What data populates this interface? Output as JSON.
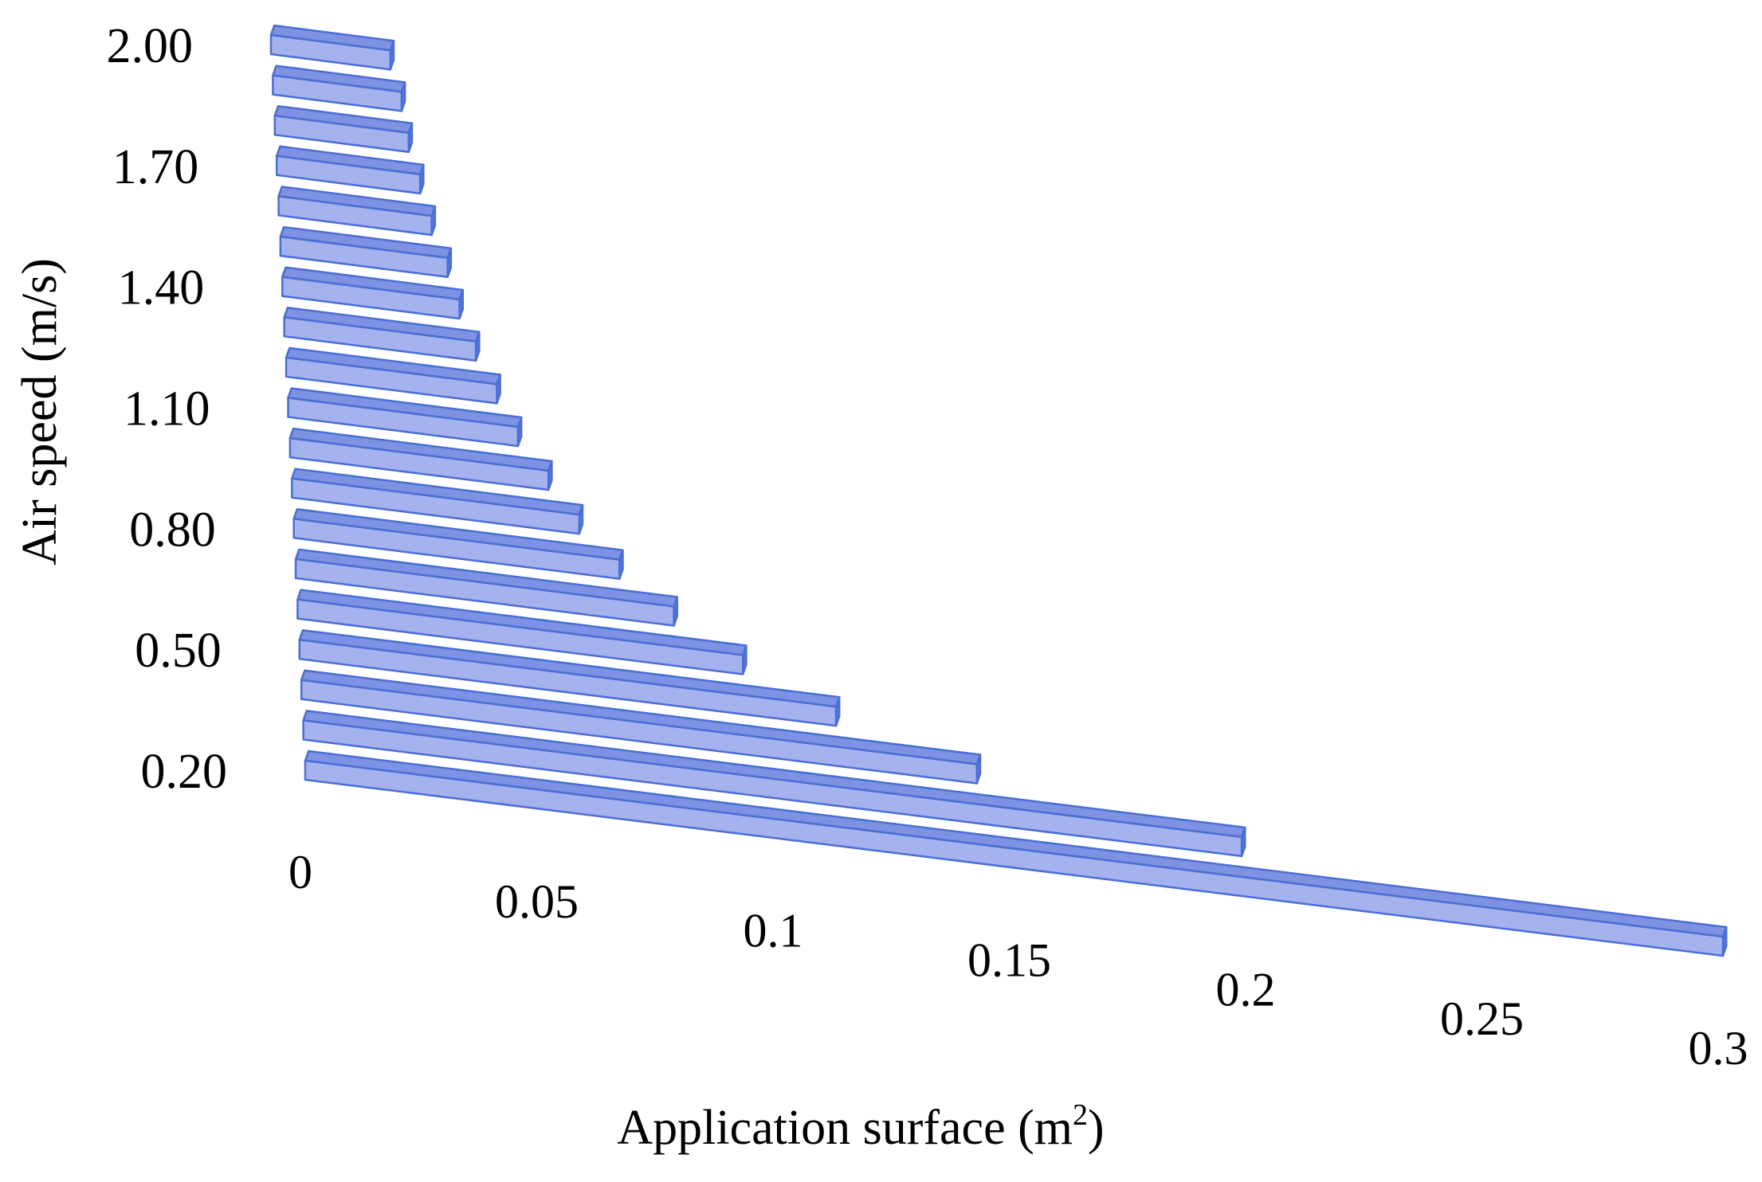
{
  "chart_data": {
    "type": "bar",
    "orientation": "horizontal",
    "style": "3d",
    "xlabel": "Application surface (m",
    "xlabel_sup": "2",
    "xlabel_end": ")",
    "ylabel": "Air speed (m/s)",
    "categories": [
      0.2,
      0.3,
      0.4,
      0.5,
      0.6,
      0.7,
      0.8,
      0.9,
      1.0,
      1.1,
      1.2,
      1.3,
      1.4,
      1.5,
      1.6,
      1.7,
      1.8,
      1.9,
      2.0
    ],
    "y_tick_labels": [
      "0.20",
      "0.50",
      "0.80",
      "1.10",
      "1.40",
      "1.70",
      "2.00"
    ],
    "y_tick_values": [
      0.2,
      0.5,
      0.8,
      1.1,
      1.4,
      1.7,
      2.0
    ],
    "x_tick_labels": [
      "0",
      "0.05",
      "0.1",
      "0.15",
      "0.2",
      "0.25",
      "0.3"
    ],
    "x_tick_values": [
      0,
      0.05,
      0.1,
      0.15,
      0.2,
      0.25,
      0.3
    ],
    "xlim": [
      0,
      0.3
    ],
    "values": [
      0.3,
      0.2,
      0.145,
      0.116,
      0.097,
      0.083,
      0.072,
      0.064,
      0.058,
      0.052,
      0.048,
      0.044,
      0.041,
      0.039,
      0.036,
      0.034,
      0.032,
      0.031,
      0.029
    ],
    "grid": false,
    "legend": "none",
    "colors": {
      "bar_face": "#a4b3ee",
      "bar_top": "#7e92e4",
      "bar_edge": "#4a6ed3",
      "bar_end": "#5677d8"
    }
  }
}
